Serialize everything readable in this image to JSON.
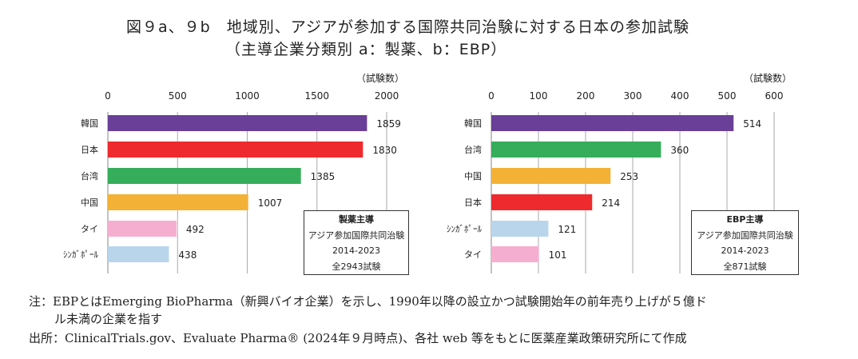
{
  "title": {
    "line1": "図９a、９b　地域別、アジアが参加する国際共同治験に対する日本の参加試験",
    "line2": "（主導企業分類別 a：製薬、b：EBP）"
  },
  "chart_data": [
    {
      "type": "bar",
      "orientation": "horizontal",
      "unit_label": "（試験数）",
      "xlim": [
        0,
        2000
      ],
      "ticks": [
        0,
        500,
        1000,
        1500,
        2000
      ],
      "grid": true,
      "categories": [
        "韓国",
        "日本",
        "台湾",
        "中国",
        "タイ",
        "ｼﾝｶﾞﾎﾟｰﾙ"
      ],
      "values": [
        1859,
        1830,
        1385,
        1007,
        492,
        438
      ],
      "colors": [
        "#6a3f98",
        "#ee2a2e",
        "#35ad5a",
        "#f3b136",
        "#f6aed0",
        "#b9d5eb"
      ],
      "legend_box": {
        "heading": "製薬主導",
        "line1": "アジア参加国際共同治験",
        "line2": "2014-2023",
        "line3": "全2943試験"
      }
    },
    {
      "type": "bar",
      "orientation": "horizontal",
      "unit_label": "（試験数）",
      "xlim": [
        0,
        600
      ],
      "ticks": [
        0,
        100,
        200,
        300,
        400,
        500,
        600
      ],
      "grid": true,
      "categories": [
        "韓国",
        "台湾",
        "中国",
        "日本",
        "ｼﾝｶﾞﾎﾟｰﾙ",
        "タイ"
      ],
      "values": [
        514,
        360,
        253,
        214,
        121,
        101
      ],
      "colors": [
        "#6a3f98",
        "#35ad5a",
        "#f3b136",
        "#ee2a2e",
        "#b9d5eb",
        "#f6aed0"
      ],
      "legend_box": {
        "heading": "EBP主導",
        "line1": "アジア参加国際共同治験",
        "line2": "2014-2023",
        "line3": "全871試験"
      }
    }
  ],
  "notes": {
    "note1a": "注：EBPとはEmerging BioPharma（新興バイオ企業）を示し、1990年以降の設立かつ試験開始年の前年売り上げが５億ド",
    "note1b": "ル未満の企業を指す",
    "source": "出所：ClinicalTrials.gov、Evaluate Pharma® (2024年９月時点)、各社 web 等をもとに医薬産業政策研究所にて作成"
  }
}
